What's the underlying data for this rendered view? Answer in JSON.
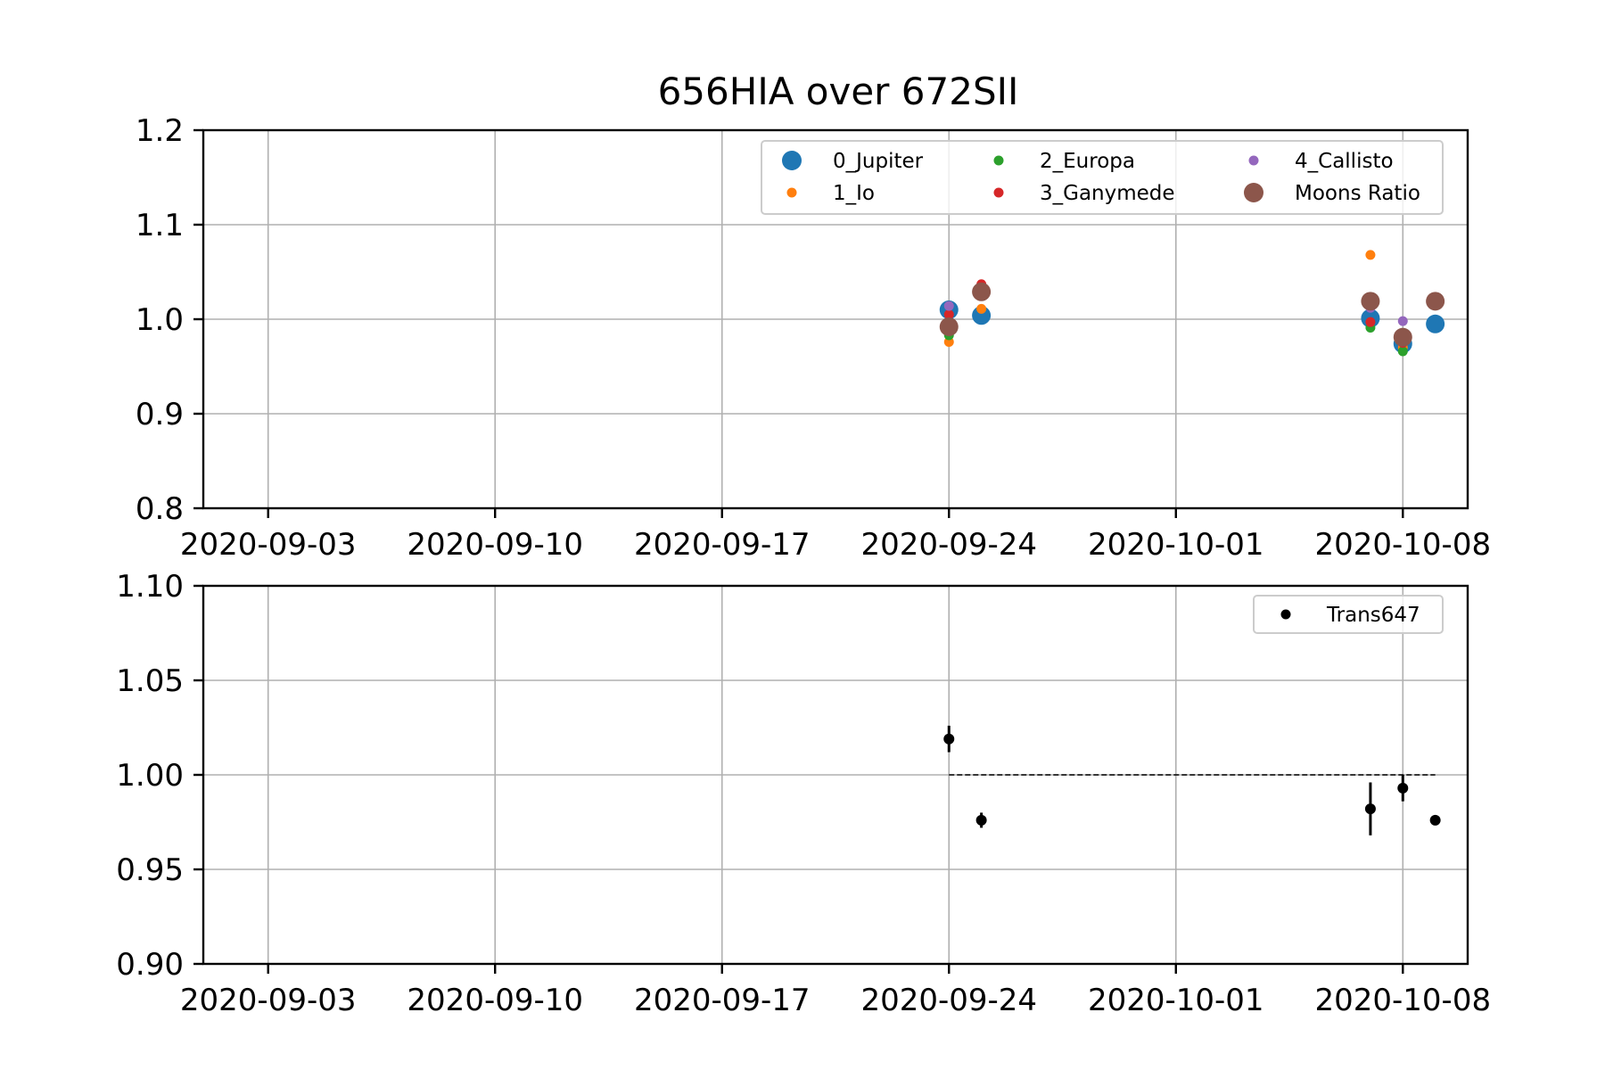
{
  "chart_data": [
    {
      "type": "scatter",
      "title": "656HIA over 672SII",
      "xlabel": "",
      "ylabel": "",
      "x_type": "date",
      "xlim": [
        "2020-09-01",
        "2020-10-10"
      ],
      "xticks": [
        "2020-09-03",
        "2020-09-10",
        "2020-09-17",
        "2020-09-24",
        "2020-10-01",
        "2020-10-08"
      ],
      "ylim": [
        0.8,
        1.2
      ],
      "yticks": [
        "0.8",
        "0.9",
        "1.0",
        "1.1",
        "1.2"
      ],
      "grid": true,
      "legend_position": "top-right",
      "legend_columns": 3,
      "series": [
        {
          "name": "0_Jupiter",
          "color": "#1f77b4",
          "marker_size": "large",
          "x": [
            "2020-09-24",
            "2020-09-25",
            "2020-10-07",
            "2020-10-08",
            "2020-10-09"
          ],
          "y": [
            1.01,
            1.004,
            1.001,
            0.974,
            0.995
          ]
        },
        {
          "name": "1_Io",
          "color": "#ff7f0e",
          "marker_size": "small",
          "x": [
            "2020-09-24",
            "2020-09-25",
            "2020-10-07",
            "2020-10-08"
          ],
          "y": [
            0.976,
            1.011,
            1.068,
            0.97
          ]
        },
        {
          "name": "2_Europa",
          "color": "#2ca02c",
          "marker_size": "small",
          "x": [
            "2020-09-24",
            "2020-09-25",
            "2020-10-07",
            "2020-10-08"
          ],
          "y": [
            0.983,
            1.03,
            0.991,
            0.966
          ]
        },
        {
          "name": "3_Ganymede",
          "color": "#d62728",
          "marker_size": "small",
          "x": [
            "2020-09-24",
            "2020-09-25",
            "2020-10-07",
            "2020-10-08"
          ],
          "y": [
            1.005,
            1.037,
            0.997,
            0.975
          ]
        },
        {
          "name": "4_Callisto",
          "color": "#9467bd",
          "marker_size": "small",
          "x": [
            "2020-09-24",
            "2020-09-25",
            "2020-10-07",
            "2020-10-08"
          ],
          "y": [
            1.014,
            1.025,
            1.012,
            0.998
          ]
        },
        {
          "name": "Moons Ratio",
          "color": "#8c564b",
          "marker_size": "large",
          "x": [
            "2020-09-24",
            "2020-09-25",
            "2020-10-07",
            "2020-10-08",
            "2020-10-09"
          ],
          "y": [
            0.992,
            1.029,
            1.019,
            0.981,
            1.019
          ]
        }
      ]
    },
    {
      "type": "scatter",
      "title": "",
      "xlabel": "",
      "ylabel": "",
      "x_type": "date",
      "xlim": [
        "2020-09-01",
        "2020-10-10"
      ],
      "xticks": [
        "2020-09-03",
        "2020-09-10",
        "2020-09-17",
        "2020-09-24",
        "2020-10-01",
        "2020-10-08"
      ],
      "ylim": [
        0.9,
        1.1
      ],
      "yticks": [
        "0.90",
        "0.95",
        "1.00",
        "1.05",
        "1.10"
      ],
      "grid": true,
      "legend_position": "top-right",
      "reference_line": {
        "y": 1.0,
        "x_start": "2020-09-24",
        "x_end": "2020-10-09",
        "style": "dashed",
        "color": "#000000"
      },
      "series": [
        {
          "name": "Trans647",
          "color": "#000000",
          "marker_size": "small",
          "x": [
            "2020-09-24",
            "2020-09-25",
            "2020-10-07",
            "2020-10-08",
            "2020-10-09"
          ],
          "y": [
            1.019,
            0.976,
            0.982,
            0.993,
            0.976
          ],
          "yerr": [
            0.007,
            0.004,
            0.014,
            0.007,
            0.002
          ]
        }
      ]
    }
  ]
}
